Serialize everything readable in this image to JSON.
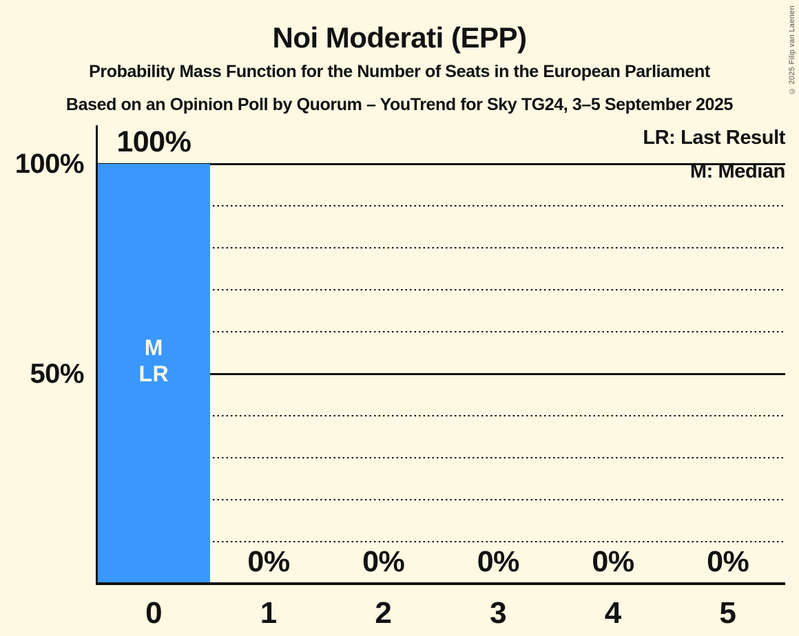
{
  "page": {
    "title": "Noi Moderati (EPP)",
    "subtitle": "Probability Mass Function for the Number of Seats in the European Parliament",
    "source_line": "Based on an Opinion Poll by Quorum – YouTrend for Sky TG24, 3–5 September 2025",
    "copyright": "© 2025 Filip van Laenen"
  },
  "legend": {
    "lr": "LR: Last Result",
    "m": "M: Median"
  },
  "colors": {
    "background": "#fdf9e3",
    "ink": "#121212",
    "bar": "#3a98fc",
    "bar_text": "#fdf9e3"
  },
  "chart_data": {
    "type": "bar",
    "title": "Noi Moderati (EPP)",
    "categories": [
      "0",
      "1",
      "2",
      "3",
      "4",
      "5"
    ],
    "values": [
      100,
      0,
      0,
      0,
      0,
      0
    ],
    "value_labels": [
      "100%",
      "0%",
      "0%",
      "0%",
      "0%",
      "0%"
    ],
    "bar_annotations": [
      [
        "M",
        "LR"
      ],
      [],
      [],
      [],
      [],
      []
    ],
    "xlabel": "",
    "ylabel": "",
    "ylim": [
      0,
      100
    ],
    "y_ticks": [
      {
        "value": 100,
        "label": "100%"
      },
      {
        "value": 50,
        "label": "50%"
      }
    ],
    "gridlines": [
      {
        "value": 100,
        "style": "solid"
      },
      {
        "value": 90,
        "style": "dotted"
      },
      {
        "value": 80,
        "style": "dotted"
      },
      {
        "value": 70,
        "style": "dotted"
      },
      {
        "value": 60,
        "style": "dotted"
      },
      {
        "value": 50,
        "style": "solid"
      },
      {
        "value": 40,
        "style": "dotted"
      },
      {
        "value": 30,
        "style": "dotted"
      },
      {
        "value": 20,
        "style": "dotted"
      },
      {
        "value": 10,
        "style": "dotted"
      }
    ],
    "grid": true,
    "legend_position": "top-right"
  }
}
